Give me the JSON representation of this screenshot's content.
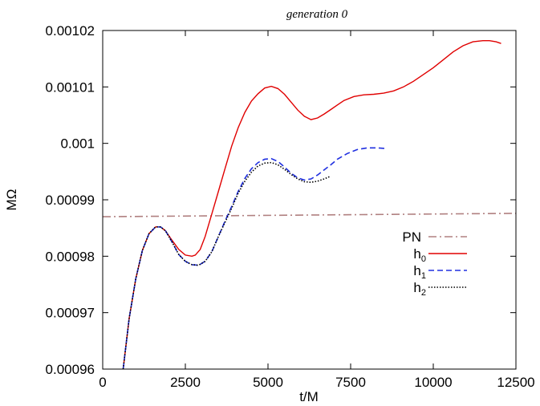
{
  "chart_data": {
    "type": "line",
    "title": "generation 0",
    "xlabel": "t/M",
    "ylabel": "MΩ",
    "xlim": [
      0,
      12500
    ],
    "ylim": [
      0.00096,
      0.00102
    ],
    "x_ticks": [
      0,
      2500,
      5000,
      7500,
      10000,
      12500
    ],
    "x_tick_labels": [
      "0",
      "2500",
      "5000",
      "7500",
      "10000",
      "12500"
    ],
    "y_ticks": [
      0.00096,
      0.00097,
      0.00098,
      0.00099,
      0.001,
      0.00101,
      0.00102
    ],
    "y_tick_labels": [
      "0.00096",
      "0.00097",
      "0.00098",
      "0.00099",
      "0.001",
      "0.00101",
      "0.00102"
    ],
    "legend_position": "right",
    "series": [
      {
        "name": "PN",
        "color": "#b08080",
        "dash": "dash-dot",
        "x": [
          0,
          12500
        ],
        "y": [
          0.000987,
          0.0009876
        ]
      },
      {
        "name": "h",
        "subscript": "0",
        "color": "#e00000",
        "dash": "solid",
        "x": [
          620,
          800,
          1000,
          1200,
          1400,
          1600,
          1750,
          1900,
          2100,
          2300,
          2500,
          2700,
          2800,
          2950,
          3100,
          3300,
          3500,
          3700,
          3900,
          4100,
          4300,
          4500,
          4700,
          4900,
          5100,
          5300,
          5500,
          5700,
          5900,
          6100,
          6300,
          6500,
          6700,
          6900,
          7100,
          7300,
          7600,
          7900,
          8200,
          8500,
          8800,
          9100,
          9400,
          9700,
          10000,
          10300,
          10600,
          10900,
          11200,
          11500,
          11700,
          11900,
          12050
        ],
        "y": [
          0.00096,
          0.000969,
          0.000976,
          0.000981,
          0.000984,
          0.0009852,
          0.0009852,
          0.0009845,
          0.0009828,
          0.0009812,
          0.0009802,
          0.00098,
          0.0009802,
          0.0009812,
          0.0009835,
          0.0009875,
          0.0009915,
          0.0009955,
          0.0009995,
          0.0010028,
          0.0010055,
          0.0010075,
          0.0010088,
          0.0010098,
          0.0010101,
          0.0010097,
          0.0010087,
          0.0010073,
          0.0010059,
          0.0010048,
          0.0010042,
          0.0010045,
          0.0010052,
          0.001006,
          0.0010068,
          0.0010076,
          0.0010083,
          0.0010086,
          0.0010087,
          0.0010089,
          0.0010093,
          0.00101,
          0.001011,
          0.0010122,
          0.0010134,
          0.0010148,
          0.0010162,
          0.0010173,
          0.001018,
          0.0010182,
          0.0010182,
          0.001018,
          0.0010177
        ]
      },
      {
        "name": "h",
        "subscript": "1",
        "color": "#2030e0",
        "dash": "dashed",
        "x": [
          620,
          800,
          1000,
          1200,
          1400,
          1600,
          1750,
          1900,
          2100,
          2300,
          2500,
          2700,
          2900,
          3100,
          3300,
          3500,
          3700,
          3900,
          4100,
          4300,
          4500,
          4700,
          4900,
          5100,
          5300,
          5500,
          5700,
          5900,
          6100,
          6300,
          6500,
          6700,
          6900,
          7100,
          7400,
          7700,
          8000,
          8300,
          8550
        ],
        "y": [
          0.00096,
          0.000969,
          0.000976,
          0.000981,
          0.000984,
          0.0009852,
          0.0009852,
          0.0009845,
          0.0009825,
          0.0009803,
          0.0009791,
          0.0009785,
          0.0009784,
          0.0009791,
          0.0009808,
          0.0009835,
          0.0009862,
          0.0009888,
          0.0009915,
          0.0009938,
          0.0009955,
          0.0009966,
          0.0009972,
          0.0009973,
          0.0009968,
          0.0009958,
          0.0009947,
          0.0009939,
          0.0009935,
          0.0009937,
          0.0009944,
          0.0009953,
          0.0009962,
          0.0009972,
          0.0009982,
          0.0009989,
          0.0009992,
          0.0009992,
          0.0009991
        ]
      },
      {
        "name": "h",
        "subscript": "2",
        "color": "#000000",
        "dash": "dotted",
        "x": [
          620,
          800,
          1000,
          1200,
          1400,
          1600,
          1750,
          1900,
          2100,
          2300,
          2500,
          2700,
          2900,
          3100,
          3300,
          3500,
          3700,
          3900,
          4100,
          4300,
          4500,
          4700,
          4900,
          5100,
          5300,
          5500,
          5700,
          5900,
          6100,
          6300,
          6500,
          6700,
          6900
        ],
        "y": [
          0.00096,
          0.000969,
          0.000976,
          0.000981,
          0.000984,
          0.0009852,
          0.0009852,
          0.0009845,
          0.0009825,
          0.0009803,
          0.0009791,
          0.0009785,
          0.0009784,
          0.0009791,
          0.0009808,
          0.0009835,
          0.000986,
          0.0009885,
          0.0009912,
          0.0009933,
          0.0009949,
          0.000996,
          0.0009965,
          0.0009966,
          0.0009962,
          0.0009954,
          0.0009945,
          0.0009937,
          0.0009932,
          0.0009931,
          0.0009933,
          0.0009937,
          0.0009942
        ]
      }
    ]
  }
}
